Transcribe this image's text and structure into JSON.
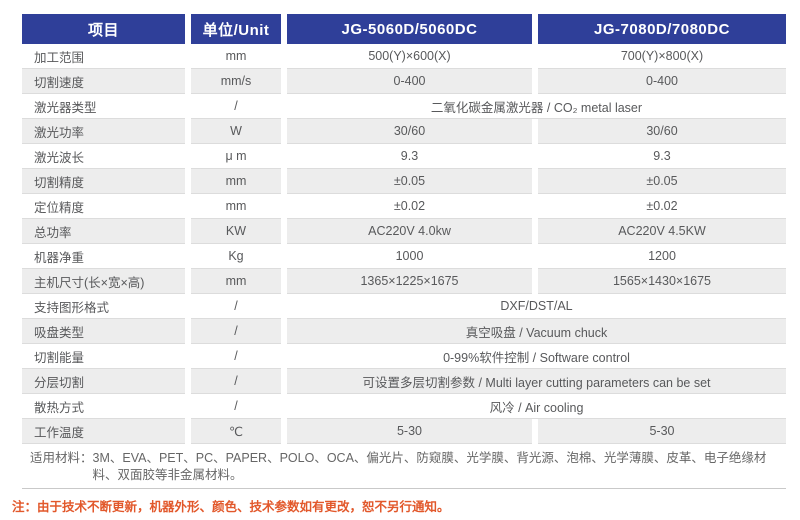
{
  "colors": {
    "header_bg": "#2f3f99",
    "header_text": "#ffffff",
    "row_alt_bg": "#ededed",
    "body_text": "#58595b",
    "note_text": "#e2582b",
    "divider": "#c9c9c9"
  },
  "table": {
    "headers": {
      "item": "项目",
      "unit": "单位/Unit",
      "model1": "JG-5060D/5060DC",
      "model2": "JG-7080D/7080DC"
    },
    "rows": [
      {
        "label": "加工范围",
        "unit": "mm",
        "v1": "500(Y)×600(X)",
        "v2": "700(Y)×800(X)"
      },
      {
        "label": "切割速度",
        "unit": "mm/s",
        "v1": "0-400",
        "v2": "0-400"
      },
      {
        "label": "激光器类型",
        "unit": "/",
        "span": "二氧化碳金属激光器 / CO₂ metal laser"
      },
      {
        "label": "激光功率",
        "unit": "W",
        "v1": "30/60",
        "v2": "30/60"
      },
      {
        "label": "激光波长",
        "unit": "μ m",
        "v1": "9.3",
        "v2": "9.3"
      },
      {
        "label": "切割精度",
        "unit": "mm",
        "v1": "±0.05",
        "v2": "±0.05"
      },
      {
        "label": "定位精度",
        "unit": "mm",
        "v1": "±0.02",
        "v2": "±0.02"
      },
      {
        "label": "总功率",
        "unit": "KW",
        "v1": "AC220V 4.0kw",
        "v2": "AC220V 4.5KW"
      },
      {
        "label": "机器净重",
        "unit": "Kg",
        "v1": "1000",
        "v2": "1200"
      },
      {
        "label": "主机尺寸(长×宽×高)",
        "unit": "mm",
        "v1": "1365×1225×1675",
        "v2": "1565×1430×1675"
      },
      {
        "label": "支持图形格式",
        "unit": "/",
        "span": "DXF/DST/AL"
      },
      {
        "label": "吸盘类型",
        "unit": "/",
        "span": "真空吸盘 / Vacuum chuck"
      },
      {
        "label": "切割能量",
        "unit": "/",
        "span": "0-99%软件控制 / Software control"
      },
      {
        "label": "分层切割",
        "unit": "/",
        "span": "可设置多层切割参数 / Multi layer cutting parameters can be set"
      },
      {
        "label": "散热方式",
        "unit": "/",
        "span": "风冷 / Air cooling"
      },
      {
        "label": "工作温度",
        "unit": "℃",
        "v1": "5-30",
        "v2": "5-30"
      }
    ]
  },
  "materials": {
    "label": "适用材料：",
    "text": "3M、EVA、PET、PC、PAPER、POLO、OCA、偏光片、防窥膜、光学膜、背光源、泡棉、光学薄膜、皮革、电子绝缘材料、双面胶等非金属材料。"
  },
  "note": "注：由于技术不断更新，机器外形、颜色、技术参数如有更改，恕不另行通知。"
}
